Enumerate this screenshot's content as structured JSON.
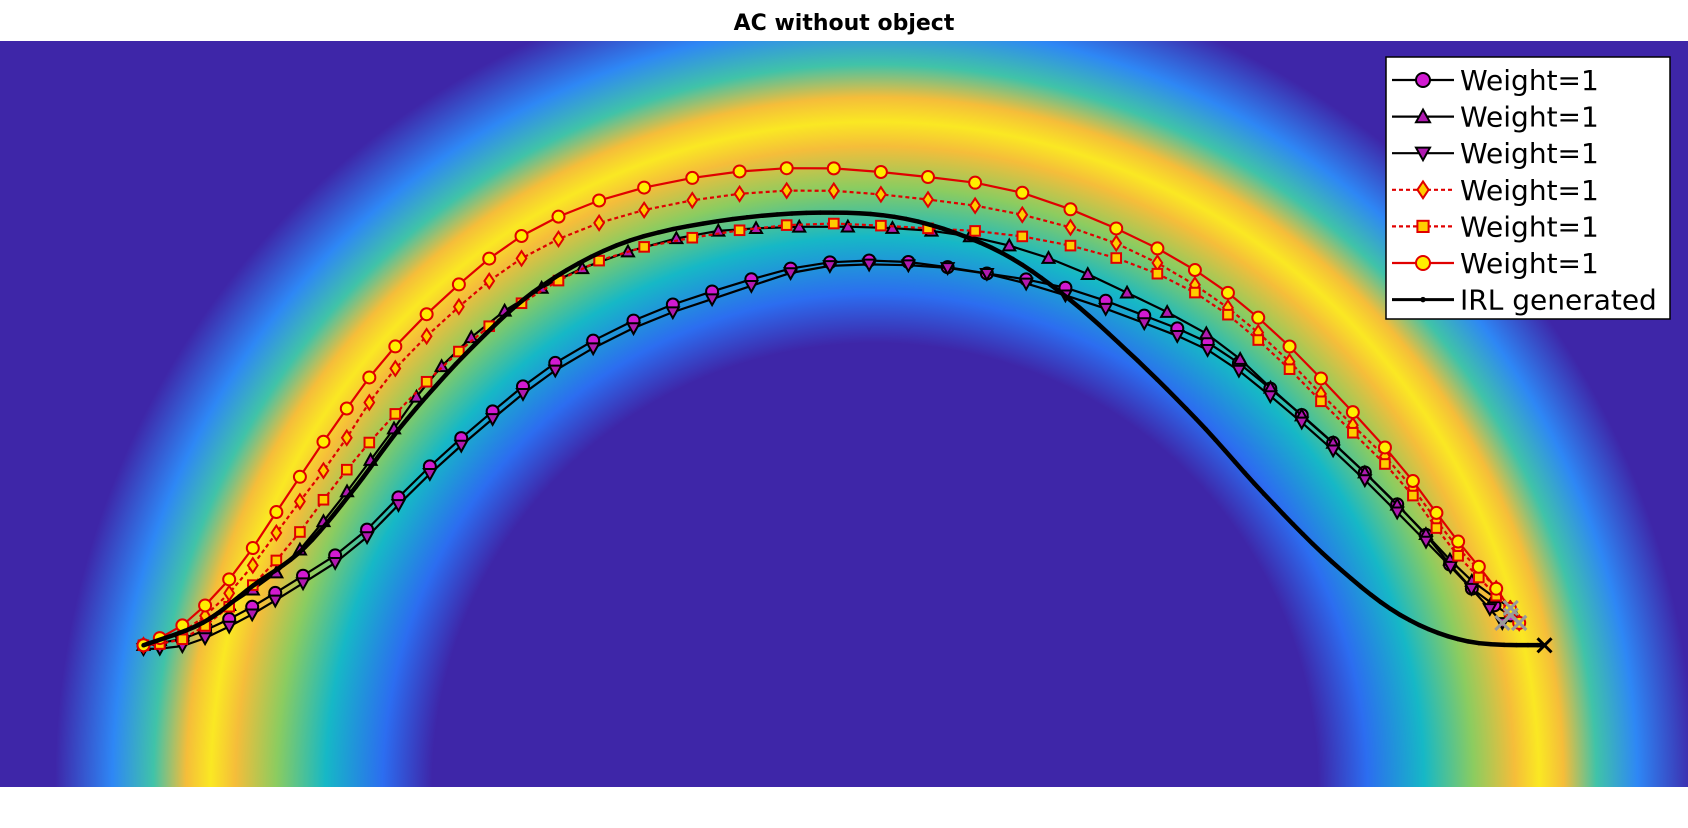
{
  "chart_data": {
    "type": "line",
    "title": "AC without object",
    "xlabel": "",
    "ylabel": "",
    "xlim": [
      0,
      1
    ],
    "ylim": [
      0,
      1
    ],
    "grid": false,
    "axes_visible": false,
    "legend_position": "top-right",
    "background": {
      "type": "heatmap",
      "colormap": "parula",
      "shape": "ring",
      "center": [
        0.53,
        0.0
      ],
      "peak_radius": 0.74,
      "peak_color": "#fae823",
      "base_color": "#3e26a8"
    },
    "series": [
      {
        "name": "Weight=1",
        "color": "#000000",
        "marker": "circle",
        "marker_fill": "#d11ad1",
        "line_style": "solid",
        "points": [
          [
            0.085,
            0.19
          ],
          [
            0.11,
            0.2
          ],
          [
            0.14,
            0.23
          ],
          [
            0.17,
            0.27
          ],
          [
            0.21,
            0.33
          ],
          [
            0.25,
            0.42
          ],
          [
            0.29,
            0.5
          ],
          [
            0.33,
            0.57
          ],
          [
            0.38,
            0.63
          ],
          [
            0.43,
            0.67
          ],
          [
            0.48,
            0.7
          ],
          [
            0.53,
            0.705
          ],
          [
            0.58,
            0.69
          ],
          [
            0.63,
            0.67
          ],
          [
            0.68,
            0.63
          ],
          [
            0.72,
            0.59
          ],
          [
            0.76,
            0.52
          ],
          [
            0.8,
            0.44
          ],
          [
            0.84,
            0.35
          ],
          [
            0.87,
            0.27
          ],
          [
            0.895,
            0.23
          ]
        ]
      },
      {
        "name": "Weight=1",
        "color": "#000000",
        "marker": "triangle-up",
        "marker_fill": "#b01ab0",
        "line_style": "solid",
        "points": [
          [
            0.085,
            0.19
          ],
          [
            0.11,
            0.21
          ],
          [
            0.14,
            0.25
          ],
          [
            0.17,
            0.3
          ],
          [
            0.2,
            0.38
          ],
          [
            0.23,
            0.47
          ],
          [
            0.26,
            0.56
          ],
          [
            0.3,
            0.64
          ],
          [
            0.35,
            0.7
          ],
          [
            0.41,
            0.74
          ],
          [
            0.46,
            0.75
          ],
          [
            0.52,
            0.75
          ],
          [
            0.57,
            0.74
          ],
          [
            0.62,
            0.71
          ],
          [
            0.67,
            0.66
          ],
          [
            0.72,
            0.6
          ],
          [
            0.76,
            0.52
          ],
          [
            0.8,
            0.44
          ],
          [
            0.84,
            0.35
          ],
          [
            0.87,
            0.28
          ],
          [
            0.895,
            0.24
          ]
        ]
      },
      {
        "name": "Weight=1",
        "color": "#000000",
        "marker": "triangle-down",
        "marker_fill": "#b01ab0",
        "line_style": "solid",
        "points": [
          [
            0.085,
            0.185
          ],
          [
            0.11,
            0.19
          ],
          [
            0.14,
            0.22
          ],
          [
            0.17,
            0.26
          ],
          [
            0.21,
            0.32
          ],
          [
            0.25,
            0.41
          ],
          [
            0.29,
            0.49
          ],
          [
            0.33,
            0.56
          ],
          [
            0.38,
            0.62
          ],
          [
            0.43,
            0.66
          ],
          [
            0.48,
            0.695
          ],
          [
            0.53,
            0.7
          ],
          [
            0.58,
            0.69
          ],
          [
            0.63,
            0.66
          ],
          [
            0.68,
            0.62
          ],
          [
            0.72,
            0.58
          ],
          [
            0.76,
            0.51
          ],
          [
            0.8,
            0.43
          ],
          [
            0.84,
            0.34
          ],
          [
            0.87,
            0.27
          ],
          [
            0.89,
            0.22
          ]
        ]
      },
      {
        "name": "Weight=1",
        "color": "#e00000",
        "marker": "diamond",
        "marker_fill": "#ffcc00",
        "line_style": "dotted",
        "points": [
          [
            0.085,
            0.19
          ],
          [
            0.11,
            0.21
          ],
          [
            0.14,
            0.27
          ],
          [
            0.17,
            0.36
          ],
          [
            0.2,
            0.45
          ],
          [
            0.23,
            0.55
          ],
          [
            0.27,
            0.64
          ],
          [
            0.31,
            0.71
          ],
          [
            0.36,
            0.76
          ],
          [
            0.42,
            0.79
          ],
          [
            0.48,
            0.8
          ],
          [
            0.54,
            0.79
          ],
          [
            0.6,
            0.77
          ],
          [
            0.66,
            0.73
          ],
          [
            0.71,
            0.67
          ],
          [
            0.75,
            0.6
          ],
          [
            0.79,
            0.51
          ],
          [
            0.83,
            0.42
          ],
          [
            0.86,
            0.33
          ],
          [
            0.885,
            0.27
          ],
          [
            0.9,
            0.22
          ]
        ]
      },
      {
        "name": "Weight=1",
        "color": "#e00000",
        "marker": "square",
        "marker_fill": "#ffcc00",
        "line_style": "dotted",
        "points": [
          [
            0.085,
            0.19
          ],
          [
            0.11,
            0.2
          ],
          [
            0.14,
            0.25
          ],
          [
            0.17,
            0.32
          ],
          [
            0.2,
            0.41
          ],
          [
            0.23,
            0.49
          ],
          [
            0.27,
            0.58
          ],
          [
            0.31,
            0.65
          ],
          [
            0.36,
            0.71
          ],
          [
            0.42,
            0.74
          ],
          [
            0.48,
            0.755
          ],
          [
            0.54,
            0.75
          ],
          [
            0.6,
            0.74
          ],
          [
            0.66,
            0.71
          ],
          [
            0.71,
            0.66
          ],
          [
            0.75,
            0.59
          ],
          [
            0.79,
            0.5
          ],
          [
            0.83,
            0.41
          ],
          [
            0.86,
            0.32
          ],
          [
            0.885,
            0.26
          ],
          [
            0.9,
            0.22
          ]
        ]
      },
      {
        "name": "Weight=1",
        "color": "#e00000",
        "marker": "circle",
        "marker_fill": "#ffee00",
        "line_style": "solid",
        "points": [
          [
            0.085,
            0.19
          ],
          [
            0.11,
            0.22
          ],
          [
            0.14,
            0.29
          ],
          [
            0.17,
            0.39
          ],
          [
            0.2,
            0.49
          ],
          [
            0.23,
            0.58
          ],
          [
            0.27,
            0.67
          ],
          [
            0.31,
            0.74
          ],
          [
            0.36,
            0.79
          ],
          [
            0.42,
            0.82
          ],
          [
            0.48,
            0.83
          ],
          [
            0.54,
            0.82
          ],
          [
            0.6,
            0.8
          ],
          [
            0.66,
            0.75
          ],
          [
            0.71,
            0.69
          ],
          [
            0.75,
            0.62
          ],
          [
            0.79,
            0.53
          ],
          [
            0.83,
            0.43
          ],
          [
            0.86,
            0.34
          ],
          [
            0.885,
            0.27
          ],
          [
            0.9,
            0.22
          ]
        ]
      },
      {
        "name": "IRL generated",
        "color": "#000000",
        "marker": "point",
        "marker_fill": "#000000",
        "line_style": "solid",
        "points": [
          [
            0.085,
            0.19
          ],
          [
            0.12,
            0.22
          ],
          [
            0.15,
            0.27
          ],
          [
            0.18,
            0.32
          ],
          [
            0.21,
            0.4
          ],
          [
            0.24,
            0.49
          ],
          [
            0.28,
            0.59
          ],
          [
            0.32,
            0.67
          ],
          [
            0.37,
            0.73
          ],
          [
            0.43,
            0.76
          ],
          [
            0.49,
            0.77
          ],
          [
            0.54,
            0.76
          ],
          [
            0.59,
            0.72
          ],
          [
            0.63,
            0.66
          ],
          [
            0.67,
            0.58
          ],
          [
            0.71,
            0.49
          ],
          [
            0.75,
            0.39
          ],
          [
            0.79,
            0.3
          ],
          [
            0.83,
            0.23
          ],
          [
            0.87,
            0.195
          ],
          [
            0.915,
            0.19
          ]
        ]
      }
    ]
  }
}
